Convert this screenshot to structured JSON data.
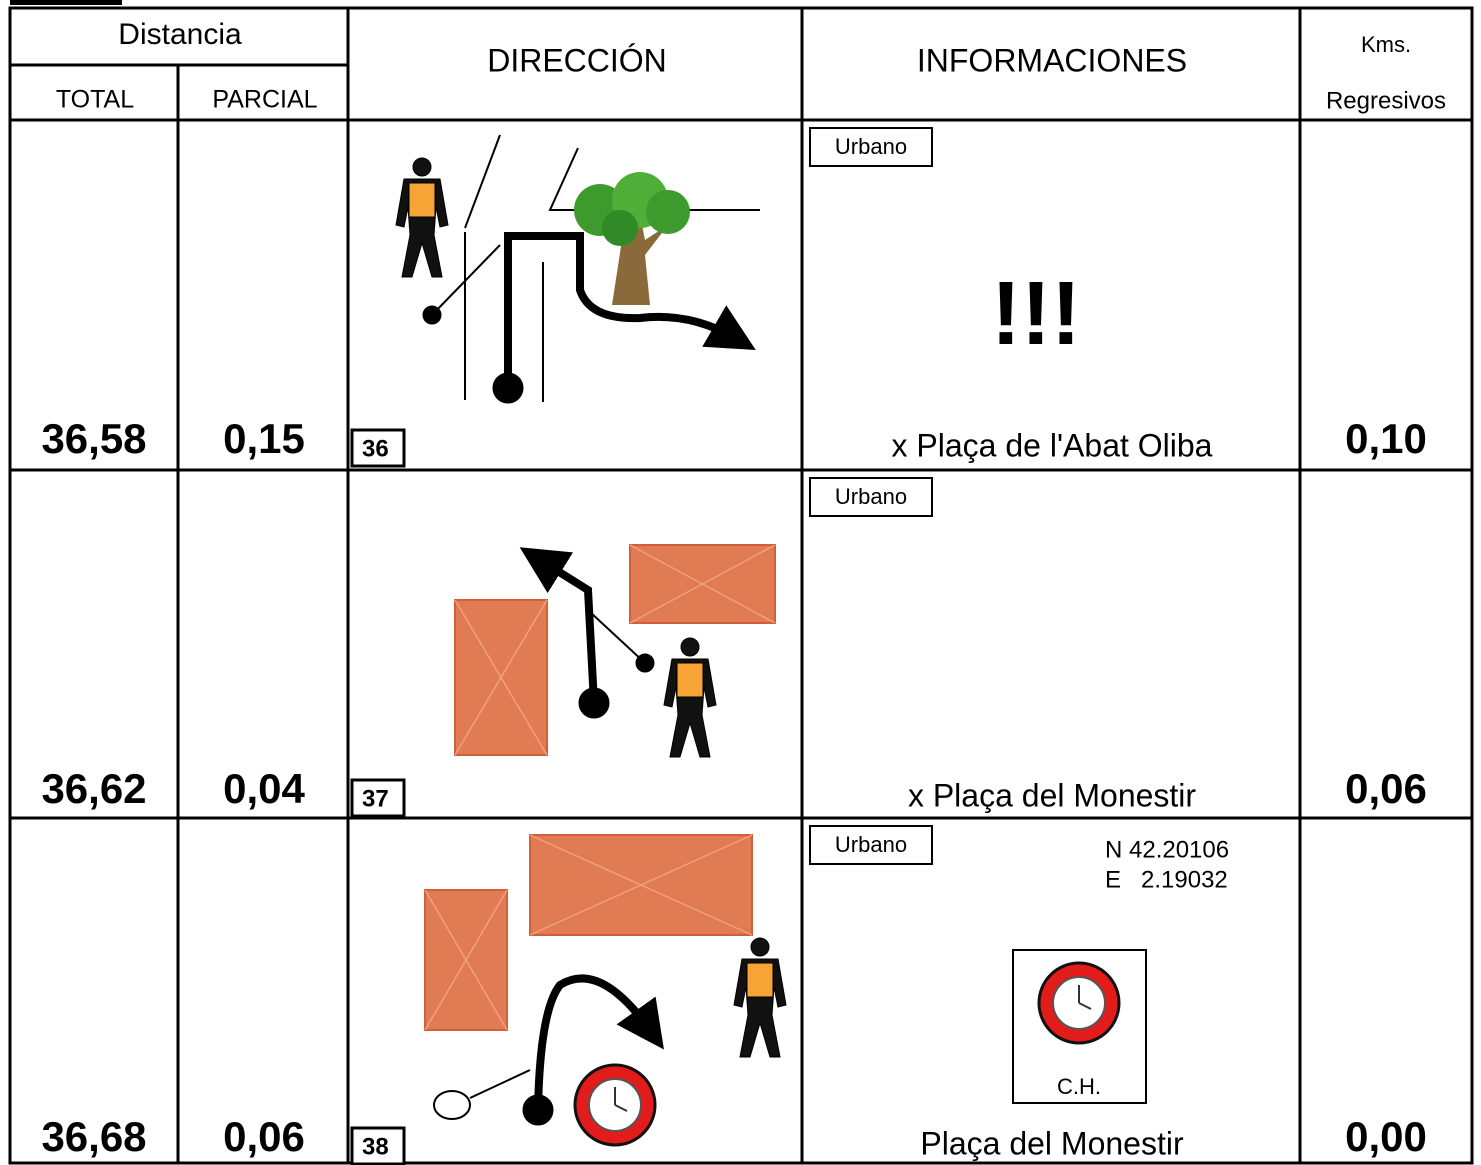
{
  "header": {
    "distance": "Distancia",
    "total": "TOTAL",
    "partial": "PARCIAL",
    "direction": "DIRECCIÓN",
    "information": "INFORMACIONES",
    "kms": "Kms.",
    "regressive": "Regresivos"
  },
  "rows": [
    {
      "total": "36,58",
      "partial": "0,15",
      "number": "36",
      "tag": "Urbano",
      "alert": "!!!",
      "info": "x Plaça de l'Abat Oliba",
      "remaining": "0,10"
    },
    {
      "total": "36,62",
      "partial": "0,04",
      "number": "37",
      "tag": "Urbano",
      "info": "x Plaça del Monestir",
      "remaining": "0,06"
    },
    {
      "total": "36,68",
      "partial": "0,06",
      "number": "38",
      "tag": "Urbano",
      "coordinates": [
        "N 42.20106",
        "E   2.19032"
      ],
      "clock_label": "C.H.",
      "info": "Plaça del Monestir",
      "remaining": "0,00"
    }
  ]
}
